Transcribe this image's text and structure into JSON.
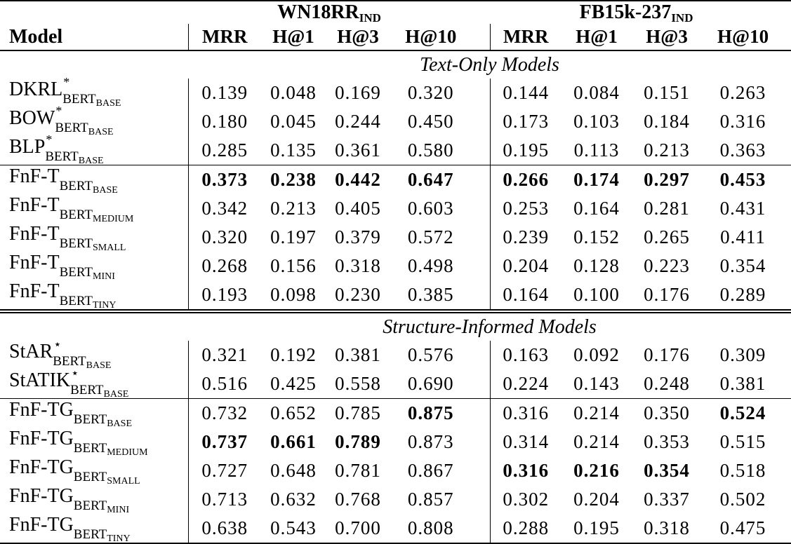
{
  "page": {
    "background": "#ffffff",
    "text_color": "#000000"
  },
  "table": {
    "col_headers": {
      "model": "Model",
      "metrics": [
        "MRR",
        "H@1",
        "H@3",
        "H@10"
      ]
    },
    "groups": [
      {
        "name": "WN18RR",
        "subscript": "IND"
      },
      {
        "name": "FB15k-237",
        "subscript": "IND"
      }
    ],
    "sections": [
      {
        "label": "Text-Only Models",
        "blocks": [
          {
            "rows": [
              {
                "model": {
                  "base": "DKRL",
                  "sup": "*",
                  "sub": "BERT",
                  "subsub": "BASE"
                },
                "values": [
                  "0.139",
                  "0.048",
                  "0.169",
                  "0.320",
                  "0.144",
                  "0.084",
                  "0.151",
                  "0.263"
                ],
                "bold": [
                  false,
                  false,
                  false,
                  false,
                  false,
                  false,
                  false,
                  false
                ]
              },
              {
                "model": {
                  "base": "BOW",
                  "sup": "*",
                  "sub": "BERT",
                  "subsub": "BASE"
                },
                "values": [
                  "0.180",
                  "0.045",
                  "0.244",
                  "0.450",
                  "0.173",
                  "0.103",
                  "0.184",
                  "0.316"
                ],
                "bold": [
                  false,
                  false,
                  false,
                  false,
                  false,
                  false,
                  false,
                  false
                ]
              },
              {
                "model": {
                  "base": "BLP",
                  "sup": "*",
                  "sub": "BERT",
                  "subsub": "BASE"
                },
                "values": [
                  "0.285",
                  "0.135",
                  "0.361",
                  "0.580",
                  "0.195",
                  "0.113",
                  "0.213",
                  "0.363"
                ],
                "bold": [
                  false,
                  false,
                  false,
                  false,
                  false,
                  false,
                  false,
                  false
                ]
              }
            ]
          },
          {
            "rows": [
              {
                "model": {
                  "base": "FnF-T",
                  "sup": "",
                  "sub": "BERT",
                  "subsub": "BASE"
                },
                "values": [
                  "0.373",
                  "0.238",
                  "0.442",
                  "0.647",
                  "0.266",
                  "0.174",
                  "0.297",
                  "0.453"
                ],
                "bold": [
                  true,
                  true,
                  true,
                  true,
                  true,
                  true,
                  true,
                  true
                ]
              },
              {
                "model": {
                  "base": "FnF-T",
                  "sup": "",
                  "sub": "BERT",
                  "subsub": "MEDIUM"
                },
                "values": [
                  "0.342",
                  "0.213",
                  "0.405",
                  "0.603",
                  "0.253",
                  "0.164",
                  "0.281",
                  "0.431"
                ],
                "bold": [
                  false,
                  false,
                  false,
                  false,
                  false,
                  false,
                  false,
                  false
                ]
              },
              {
                "model": {
                  "base": "FnF-T",
                  "sup": "",
                  "sub": "BERT",
                  "subsub": "SMALL"
                },
                "values": [
                  "0.320",
                  "0.197",
                  "0.379",
                  "0.572",
                  "0.239",
                  "0.152",
                  "0.265",
                  "0.411"
                ],
                "bold": [
                  false,
                  false,
                  false,
                  false,
                  false,
                  false,
                  false,
                  false
                ]
              },
              {
                "model": {
                  "base": "FnF-T",
                  "sup": "",
                  "sub": "BERT",
                  "subsub": "MINI"
                },
                "values": [
                  "0.268",
                  "0.156",
                  "0.318",
                  "0.498",
                  "0.204",
                  "0.128",
                  "0.223",
                  "0.354"
                ],
                "bold": [
                  false,
                  false,
                  false,
                  false,
                  false,
                  false,
                  false,
                  false
                ]
              },
              {
                "model": {
                  "base": "FnF-T",
                  "sup": "",
                  "sub": "BERT",
                  "subsub": "TINY"
                },
                "values": [
                  "0.193",
                  "0.098",
                  "0.230",
                  "0.385",
                  "0.164",
                  "0.100",
                  "0.176",
                  "0.289"
                ],
                "bold": [
                  false,
                  false,
                  false,
                  false,
                  false,
                  false,
                  false,
                  false
                ]
              }
            ]
          }
        ]
      },
      {
        "label": "Structure-Informed Models",
        "blocks": [
          {
            "rows": [
              {
                "model": {
                  "base": "StAR",
                  "sup": "⋆",
                  "sub": "BERT",
                  "subsub": "BASE"
                },
                "values": [
                  "0.321",
                  "0.192",
                  "0.381",
                  "0.576",
                  "0.163",
                  "0.092",
                  "0.176",
                  "0.309"
                ],
                "bold": [
                  false,
                  false,
                  false,
                  false,
                  false,
                  false,
                  false,
                  false
                ]
              },
              {
                "model": {
                  "base": "StATIK",
                  "sup": "⋆",
                  "sub": "BERT",
                  "subsub": "BASE"
                },
                "values": [
                  "0.516",
                  "0.425",
                  "0.558",
                  "0.690",
                  "0.224",
                  "0.143",
                  "0.248",
                  "0.381"
                ],
                "bold": [
                  false,
                  false,
                  false,
                  false,
                  false,
                  false,
                  false,
                  false
                ]
              }
            ]
          },
          {
            "rows": [
              {
                "model": {
                  "base": "FnF-TG",
                  "sup": "",
                  "sub": "BERT",
                  "subsub": "BASE"
                },
                "values": [
                  "0.732",
                  "0.652",
                  "0.785",
                  "0.875",
                  "0.316",
                  "0.214",
                  "0.350",
                  "0.524"
                ],
                "bold": [
                  false,
                  false,
                  false,
                  true,
                  false,
                  false,
                  false,
                  true
                ]
              },
              {
                "model": {
                  "base": "FnF-TG",
                  "sup": "",
                  "sub": "BERT",
                  "subsub": "MEDIUM"
                },
                "values": [
                  "0.737",
                  "0.661",
                  "0.789",
                  "0.873",
                  "0.314",
                  "0.214",
                  "0.353",
                  "0.515"
                ],
                "bold": [
                  true,
                  true,
                  true,
                  false,
                  false,
                  false,
                  false,
                  false
                ]
              },
              {
                "model": {
                  "base": "FnF-TG",
                  "sup": "",
                  "sub": "BERT",
                  "subsub": "SMALL"
                },
                "values": [
                  "0.727",
                  "0.648",
                  "0.781",
                  "0.867",
                  "0.316",
                  "0.216",
                  "0.354",
                  "0.518"
                ],
                "bold": [
                  false,
                  false,
                  false,
                  false,
                  true,
                  true,
                  true,
                  false
                ]
              },
              {
                "model": {
                  "base": "FnF-TG",
                  "sup": "",
                  "sub": "BERT",
                  "subsub": "MINI"
                },
                "values": [
                  "0.713",
                  "0.632",
                  "0.768",
                  "0.857",
                  "0.302",
                  "0.204",
                  "0.337",
                  "0.502"
                ],
                "bold": [
                  false,
                  false,
                  false,
                  false,
                  false,
                  false,
                  false,
                  false
                ]
              },
              {
                "model": {
                  "base": "FnF-TG",
                  "sup": "",
                  "sub": "BERT",
                  "subsub": "TINY"
                },
                "values": [
                  "0.638",
                  "0.543",
                  "0.700",
                  "0.808",
                  "0.288",
                  "0.195",
                  "0.318",
                  "0.475"
                ],
                "bold": [
                  false,
                  false,
                  false,
                  false,
                  false,
                  false,
                  false,
                  false
                ]
              }
            ]
          }
        ]
      }
    ]
  }
}
